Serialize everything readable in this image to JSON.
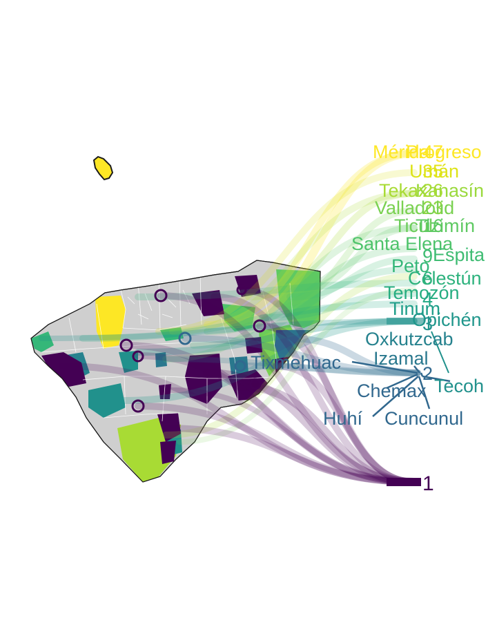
{
  "colors": {
    "c1": "#440154",
    "c2": "#31688e",
    "c3": "#35b779",
    "c4": "#a8db34",
    "c5": "#fde725",
    "land_gray": "#cfcfcf",
    "border": "#1a1a1a"
  },
  "labels": [
    {
      "text": "Mérida",
      "tone": "#fde725"
    },
    {
      "text": "Progreso",
      "tone": "#fde725"
    },
    {
      "text": "47",
      "tone": "#fde725"
    },
    {
      "text": "35",
      "tone": "#e3e418"
    },
    {
      "text": "Umán",
      "tone": "#dde318"
    },
    {
      "text": "Tekax",
      "tone": "#a8db34"
    },
    {
      "text": "Kanasín",
      "tone": "#9ad93c"
    },
    {
      "text": "26",
      "tone": "#a8db34"
    },
    {
      "text": "23",
      "tone": "#8fd744"
    },
    {
      "text": "Valladolid",
      "tone": "#7ad151"
    },
    {
      "text": "Ticul",
      "tone": "#6ccd5a"
    },
    {
      "text": "Tizimín",
      "tone": "#5ec962"
    },
    {
      "text": "16",
      "tone": "#5ec962"
    },
    {
      "text": "Santa Elena",
      "tone": "#4ec36b"
    },
    {
      "text": "9",
      "tone": "#3fbc73"
    },
    {
      "text": "Espita",
      "tone": "#3fbc73"
    },
    {
      "text": "Peto",
      "tone": "#35b779"
    },
    {
      "text": "Celestún",
      "tone": "#2db27d"
    },
    {
      "text": "6",
      "tone": "#2db27d"
    },
    {
      "text": "Temozón",
      "tone": "#26ad81"
    },
    {
      "text": "4",
      "tone": "#22a884"
    },
    {
      "text": "Tinum",
      "tone": "#1f9e89"
    },
    {
      "text": "Opichén",
      "tone": "#1f968b"
    },
    {
      "text": "3",
      "tone": "#21918c"
    },
    {
      "text": "Oxkutzcab",
      "tone": "#26828e"
    },
    {
      "text": "Izamal",
      "tone": "#2a788e"
    },
    {
      "text": "Tixmehuac",
      "tone": "#31688e"
    },
    {
      "text": "2",
      "tone": "#31688e"
    },
    {
      "text": "Tecoh",
      "tone": "#21918c"
    },
    {
      "text": "Chemax",
      "tone": "#31688e"
    },
    {
      "text": "Huhí",
      "tone": "#31688e"
    },
    {
      "text": "Cuncunul",
      "tone": "#31688e"
    },
    {
      "text": "1",
      "tone": "#440154"
    }
  ]
}
